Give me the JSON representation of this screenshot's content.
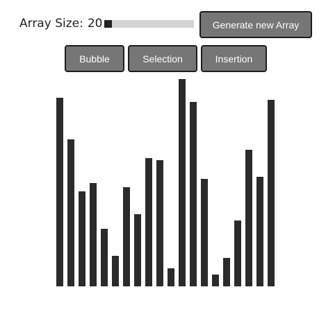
{
  "controls": {
    "size_label": "Array Size:",
    "size_value": "20",
    "size_slider_level": 0.0,
    "generate_label": "Generate new Array",
    "sort_buttons": {
      "bubble": "Bubble",
      "selection": "Selection",
      "insertion": "Insertion"
    }
  },
  "array": {
    "values": [
      272,
      212,
      137,
      149,
      83,
      44,
      143,
      104,
      185,
      182,
      26,
      299,
      266,
      155,
      17,
      41,
      95,
      197,
      158,
      269
    ],
    "max_value": 299
  },
  "colors": {
    "bar": "#2b2b2b",
    "button_bg": "#767676",
    "slider_track": "#d3d3d3"
  }
}
